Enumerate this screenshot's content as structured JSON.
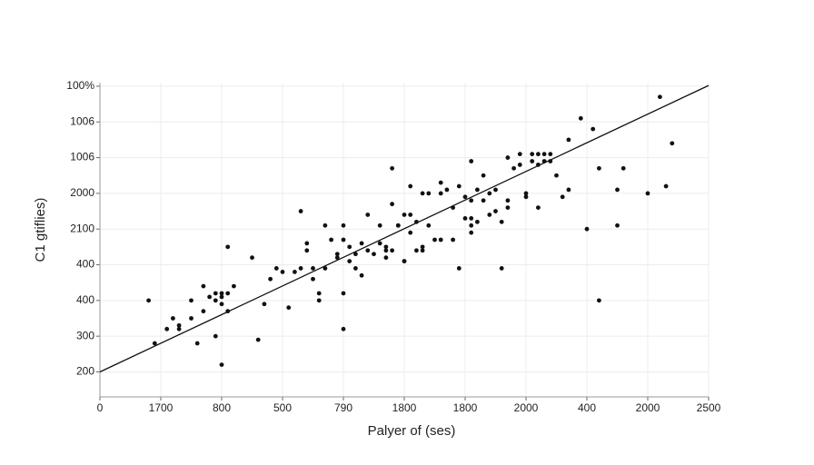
{
  "chart_data": {
    "type": "scatter",
    "x_label": "Palyer of (ses)",
    "y_label": "C1 gtiflies)",
    "xlim": [
      0,
      10
    ],
    "ylim": [
      -0.7,
      8.1
    ],
    "xticks": [
      {
        "value": 0,
        "label": "0"
      },
      {
        "value": 1,
        "label": "1700"
      },
      {
        "value": 2,
        "label": "800"
      },
      {
        "value": 3,
        "label": "500"
      },
      {
        "value": 4,
        "label": "790"
      },
      {
        "value": 5,
        "label": "1800"
      },
      {
        "value": 6,
        "label": "1800"
      },
      {
        "value": 7,
        "label": "2000"
      },
      {
        "value": 8,
        "label": "400"
      },
      {
        "value": 9,
        "label": "2000"
      },
      {
        "value": 10,
        "label": "2500"
      }
    ],
    "yticks": [
      {
        "value": 0,
        "label": "200"
      },
      {
        "value": 1,
        "label": "300"
      },
      {
        "value": 2,
        "label": "400"
      },
      {
        "value": 3,
        "label": "400"
      },
      {
        "value": 4,
        "label": "2100"
      },
      {
        "value": 5,
        "label": "2000"
      },
      {
        "value": 6,
        "label": "1006"
      },
      {
        "value": 7,
        "label": "1006"
      },
      {
        "value": 8,
        "label": "100%"
      }
    ],
    "grid": true,
    "color": "#111111",
    "trend_line": {
      "x": [
        0,
        10
      ],
      "y": [
        0,
        8.02
      ],
      "color": "#111111"
    },
    "x": [
      0.8,
      0.9,
      1.1,
      1.2,
      1.3,
      1.3,
      1.5,
      1.5,
      1.6,
      1.7,
      1.7,
      1.8,
      1.9,
      1.9,
      1.9,
      2.0,
      2.0,
      2.0,
      2.0,
      2.1,
      2.1,
      2.1,
      2.2,
      2.5,
      2.7,
      2.6,
      2.8,
      2.9,
      3.0,
      3.1,
      3.2,
      3.3,
      3.3,
      3.4,
      3.4,
      3.5,
      3.5,
      3.6,
      3.6,
      3.7,
      3.7,
      3.8,
      3.9,
      3.9,
      4.0,
      4.0,
      4.0,
      4.0,
      4.1,
      4.1,
      4.2,
      4.2,
      4.3,
      4.3,
      4.4,
      4.4,
      4.5,
      4.6,
      4.6,
      4.7,
      4.7,
      4.7,
      4.8,
      4.8,
      4.8,
      4.9,
      4.9,
      5.0,
      5.0,
      5.0,
      5.1,
      5.1,
      5.1,
      5.2,
      5.2,
      5.3,
      5.3,
      5.3,
      5.4,
      5.4,
      5.5,
      5.6,
      5.6,
      5.6,
      5.7,
      5.8,
      5.8,
      5.9,
      5.9,
      6.0,
      6.0,
      6.1,
      6.1,
      6.1,
      6.1,
      6.1,
      6.2,
      6.2,
      6.3,
      6.3,
      6.4,
      6.4,
      6.5,
      6.5,
      6.6,
      6.6,
      6.7,
      6.7,
      6.7,
      6.8,
      6.9,
      6.9,
      7.0,
      7.0,
      7.1,
      7.1,
      7.2,
      7.2,
      7.2,
      7.3,
      7.3,
      7.4,
      7.4,
      7.5,
      7.6,
      7.7,
      7.7,
      7.9,
      8.0,
      8.1,
      8.2,
      8.2,
      8.5,
      8.5,
      8.6,
      9.0,
      9.2,
      9.3,
      9.4
    ],
    "values": [
      2.0,
      0.8,
      1.2,
      1.5,
      1.3,
      1.2,
      1.5,
      2.0,
      0.8,
      2.4,
      1.7,
      2.1,
      1.0,
      2.2,
      2.0,
      1.9,
      2.2,
      0.2,
      2.1,
      1.7,
      2.2,
      3.5,
      2.4,
      3.2,
      1.9,
      0.9,
      2.6,
      2.9,
      2.8,
      1.8,
      2.8,
      4.5,
      2.9,
      3.4,
      3.6,
      2.9,
      2.6,
      2.2,
      2.0,
      4.1,
      2.9,
      3.7,
      3.2,
      3.3,
      2.2,
      3.7,
      4.1,
      1.2,
      3.1,
      3.5,
      2.9,
      3.3,
      3.6,
      2.7,
      4.4,
      3.4,
      3.3,
      4.1,
      3.6,
      3.2,
      3.4,
      3.5,
      3.4,
      5.7,
      4.7,
      4.1,
      4.1,
      3.1,
      3.1,
      4.4,
      3.9,
      5.2,
      4.4,
      3.4,
      4.2,
      5.0,
      3.4,
      3.5,
      5.0,
      4.1,
      3.7,
      5.0,
      3.7,
      5.3,
      5.1,
      3.7,
      4.6,
      5.2,
      2.9,
      4.3,
      4.9,
      5.9,
      4.8,
      4.1,
      3.9,
      4.3,
      5.1,
      4.2,
      4.8,
      5.5,
      5.0,
      4.4,
      4.5,
      5.1,
      4.2,
      2.9,
      4.6,
      4.8,
      6.0,
      5.7,
      5.8,
      6.1,
      5.0,
      4.9,
      5.9,
      6.1,
      5.8,
      6.1,
      4.6,
      5.9,
      6.1,
      5.9,
      6.1,
      5.5,
      4.9,
      6.5,
      5.1,
      7.1,
      4.0,
      6.8,
      2.0,
      5.7,
      5.1,
      4.1,
      5.7,
      5.0,
      7.7,
      5.2,
      6.4
    ]
  }
}
